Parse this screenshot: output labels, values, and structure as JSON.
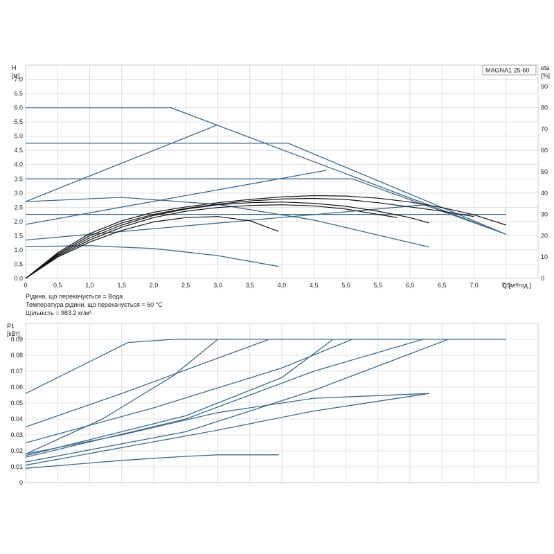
{
  "legend_box": "MAGNA1 25-60",
  "notes": {
    "fluid": "Рідина, що перекачується = Вода",
    "temperature": "Температура рідини, що перекачується = 60 °C",
    "density": "Щільність = 983.2 кг/м³"
  },
  "colors": {
    "curve": "#3a6a92",
    "eta": "#111111",
    "grid": "#d8d8d8",
    "frame": "#999999"
  },
  "chart_data": [
    {
      "type": "line",
      "ylabel": [
        "H",
        "[м]"
      ],
      "y2label": [
        "eta",
        "[%]"
      ],
      "xlabel": "Q [м³/год.]",
      "xlim": [
        0,
        8
      ],
      "ylim": [
        0,
        7.5
      ],
      "y2lim": [
        0,
        100
      ],
      "grid": true,
      "xticks": [
        0,
        0.5,
        1.0,
        1.5,
        2.0,
        2.5,
        3.0,
        3.5,
        4.0,
        4.5,
        5.0,
        5.5,
        6.0,
        6.5,
        7.0,
        7.5
      ],
      "xtick_labels": [
        "0",
        "0,5",
        "1,0",
        "1,5",
        "2,0",
        "2,5",
        "3,0",
        "3,5",
        "4,0",
        "4,5",
        "5,0",
        "5,5",
        "6,0",
        "6,5",
        "7,0",
        "7,5"
      ],
      "yticks": [
        0,
        0.5,
        1.0,
        1.5,
        2.0,
        2.5,
        3.0,
        3.5,
        4.0,
        4.5,
        5.0,
        5.5,
        6.0,
        6.5,
        7.0
      ],
      "ytick_labels": [
        "0.0",
        "0.5",
        "1.0",
        "1.5",
        "2.0",
        "2.5",
        "3.0",
        "3.5",
        "4.0",
        "4.5",
        "5.0",
        "5.5",
        "6.0",
        "6.5",
        "7.0"
      ],
      "y2ticks": [
        0,
        10,
        20,
        30,
        40,
        50,
        60,
        70,
        80,
        90
      ],
      "series": [
        {
          "kind": "head",
          "points": [
            [
              0,
              6.0
            ],
            [
              2.27,
              6.0
            ],
            [
              7.5,
              1.55
            ]
          ]
        },
        {
          "kind": "head",
          "points": [
            [
              0,
              4.75
            ],
            [
              4.1,
              4.75
            ],
            [
              7.5,
              1.55
            ]
          ]
        },
        {
          "kind": "head",
          "points": [
            [
              0,
              3.5
            ],
            [
              5.1,
              3.5
            ],
            [
              7.5,
              1.55
            ]
          ]
        },
        {
          "kind": "head",
          "points": [
            [
              0,
              2.25
            ],
            [
              7.5,
              2.25
            ]
          ]
        },
        {
          "kind": "head",
          "points": [
            [
              0,
              2.7
            ],
            [
              3.0,
              5.4
            ]
          ]
        },
        {
          "kind": "head",
          "points": [
            [
              0,
              1.9
            ],
            [
              4.7,
              3.8
            ]
          ]
        },
        {
          "kind": "head",
          "points": [
            [
              0,
              1.35
            ],
            [
              6.3,
              2.6
            ]
          ]
        },
        {
          "kind": "head",
          "points": [
            [
              0,
              2.7
            ],
            [
              1.5,
              2.85
            ],
            [
              3.0,
              2.6
            ],
            [
              4.5,
              2.05
            ],
            [
              6.3,
              1.1
            ]
          ]
        },
        {
          "kind": "head",
          "points": [
            [
              0,
              1.12
            ],
            [
              1.0,
              1.15
            ],
            [
              2.0,
              1.05
            ],
            [
              3.0,
              0.8
            ],
            [
              3.95,
              0.42
            ]
          ]
        },
        {
          "kind": "eta",
          "points": [
            [
              0,
              0
            ],
            [
              0.5,
              12
            ],
            [
              1.0,
              21
            ],
            [
              1.5,
              27
            ],
            [
              2.0,
              31
            ],
            [
              2.5,
              33.5
            ],
            [
              3.0,
              35.5
            ],
            [
              3.5,
              37
            ],
            [
              4.0,
              38.2
            ],
            [
              4.5,
              38.8
            ],
            [
              5.0,
              38.6
            ],
            [
              5.5,
              37.6
            ],
            [
              6.0,
              35.8
            ],
            [
              6.5,
              33.2
            ],
            [
              7.0,
              29.8
            ],
            [
              7.5,
              25
            ]
          ]
        },
        {
          "kind": "eta",
          "points": [
            [
              0,
              0
            ],
            [
              0.5,
              11.5
            ],
            [
              1.0,
              20
            ],
            [
              1.5,
              26
            ],
            [
              2.0,
              30
            ],
            [
              2.5,
              32.8
            ],
            [
              3.0,
              34.8
            ],
            [
              3.5,
              36.3
            ],
            [
              4.0,
              37.2
            ],
            [
              4.5,
              37.5
            ],
            [
              5.0,
              37
            ],
            [
              5.5,
              35.5
            ],
            [
              6.0,
              33.5
            ],
            [
              6.5,
              31.5
            ],
            [
              7.0,
              29
            ]
          ]
        },
        {
          "kind": "eta",
          "points": [
            [
              0,
              0
            ],
            [
              0.5,
              11
            ],
            [
              1.0,
              19
            ],
            [
              1.5,
              25
            ],
            [
              2.0,
              29.5
            ],
            [
              2.5,
              32.5
            ],
            [
              3.0,
              34.5
            ],
            [
              3.5,
              35.5
            ],
            [
              4.0,
              35.8
            ],
            [
              4.5,
              35.2
            ],
            [
              5.0,
              33.8
            ],
            [
              5.5,
              31.5
            ],
            [
              6.0,
              28.5
            ],
            [
              6.3,
              26
            ]
          ]
        },
        {
          "kind": "eta",
          "points": [
            [
              0,
              0
            ],
            [
              0.5,
              10.5
            ],
            [
              1.0,
              18
            ],
            [
              1.5,
              24
            ],
            [
              2.0,
              28.5
            ],
            [
              2.5,
              31.5
            ],
            [
              3.0,
              33.2
            ],
            [
              3.5,
              34.2
            ],
            [
              4.0,
              34.5
            ],
            [
              4.5,
              34
            ],
            [
              5.0,
              32.5
            ],
            [
              5.5,
              30
            ],
            [
              5.8,
              28.5
            ]
          ]
        },
        {
          "kind": "eta",
          "points": [
            [
              0,
              0
            ],
            [
              0.5,
              10
            ],
            [
              1.0,
              17
            ],
            [
              1.5,
              22.5
            ],
            [
              2.0,
              26.5
            ],
            [
              2.5,
              28.5
            ],
            [
              3.0,
              29
            ],
            [
              3.5,
              27
            ],
            [
              3.95,
              22
            ]
          ]
        }
      ]
    },
    {
      "type": "line",
      "ylabel": [
        "P1",
        "[кВт]"
      ],
      "xlim": [
        0,
        8
      ],
      "ylim": [
        0,
        0.1
      ],
      "grid": true,
      "xticks": [
        0,
        0.5,
        1.0,
        1.5,
        2.0,
        2.5,
        3.0,
        3.5,
        4.0,
        4.5,
        5.0,
        5.5,
        6.0,
        6.5,
        7.0,
        7.5
      ],
      "yticks": [
        0,
        0.01,
        0.02,
        0.03,
        0.04,
        0.05,
        0.06,
        0.07,
        0.08,
        0.09
      ],
      "ytick_labels": [
        "0",
        "0.01",
        "0.02",
        "0.03",
        "0.04",
        "0.05",
        "0.06",
        "0.07",
        "0.08",
        "0.09"
      ],
      "series": [
        {
          "points": [
            [
              0,
              0.056
            ],
            [
              1.6,
              0.088
            ],
            [
              2.3,
              0.09
            ],
            [
              7.5,
              0.09
            ]
          ]
        },
        {
          "points": [
            [
              0,
              0.035
            ],
            [
              1.5,
              0.056
            ],
            [
              3.8,
              0.09
            ]
          ]
        },
        {
          "points": [
            [
              0,
              0.018
            ],
            [
              1.2,
              0.04
            ],
            [
              2.3,
              0.067
            ],
            [
              3.0,
              0.09
            ]
          ]
        },
        {
          "points": [
            [
              0,
              0.025
            ],
            [
              2.0,
              0.047
            ],
            [
              4.0,
              0.072
            ],
            [
              5.1,
              0.09
            ]
          ]
        },
        {
          "points": [
            [
              0,
              0.016
            ],
            [
              2.5,
              0.04
            ],
            [
              4.5,
              0.07
            ],
            [
              6.2,
              0.09
            ]
          ]
        },
        {
          "points": [
            [
              0,
              0.017
            ],
            [
              2.5,
              0.042
            ],
            [
              4.0,
              0.066
            ],
            [
              4.8,
              0.09
            ]
          ]
        },
        {
          "points": [
            [
              0,
              0.013
            ],
            [
              2.5,
              0.032
            ],
            [
              4.5,
              0.058
            ],
            [
              6.6,
              0.09
            ]
          ]
        },
        {
          "points": [
            [
              0,
              0.018
            ],
            [
              1.5,
              0.03
            ],
            [
              3.0,
              0.044
            ],
            [
              4.5,
              0.053
            ],
            [
              6.3,
              0.056
            ]
          ]
        },
        {
          "points": [
            [
              0,
              0.011
            ],
            [
              1.5,
              0.022
            ],
            [
              3.0,
              0.033
            ],
            [
              4.5,
              0.045
            ],
            [
              6.3,
              0.056
            ]
          ]
        },
        {
          "points": [
            [
              0,
              0.009
            ],
            [
              1.5,
              0.014
            ],
            [
              2.5,
              0.0165
            ],
            [
              3.0,
              0.0175
            ],
            [
              3.95,
              0.0175
            ]
          ]
        }
      ]
    }
  ]
}
